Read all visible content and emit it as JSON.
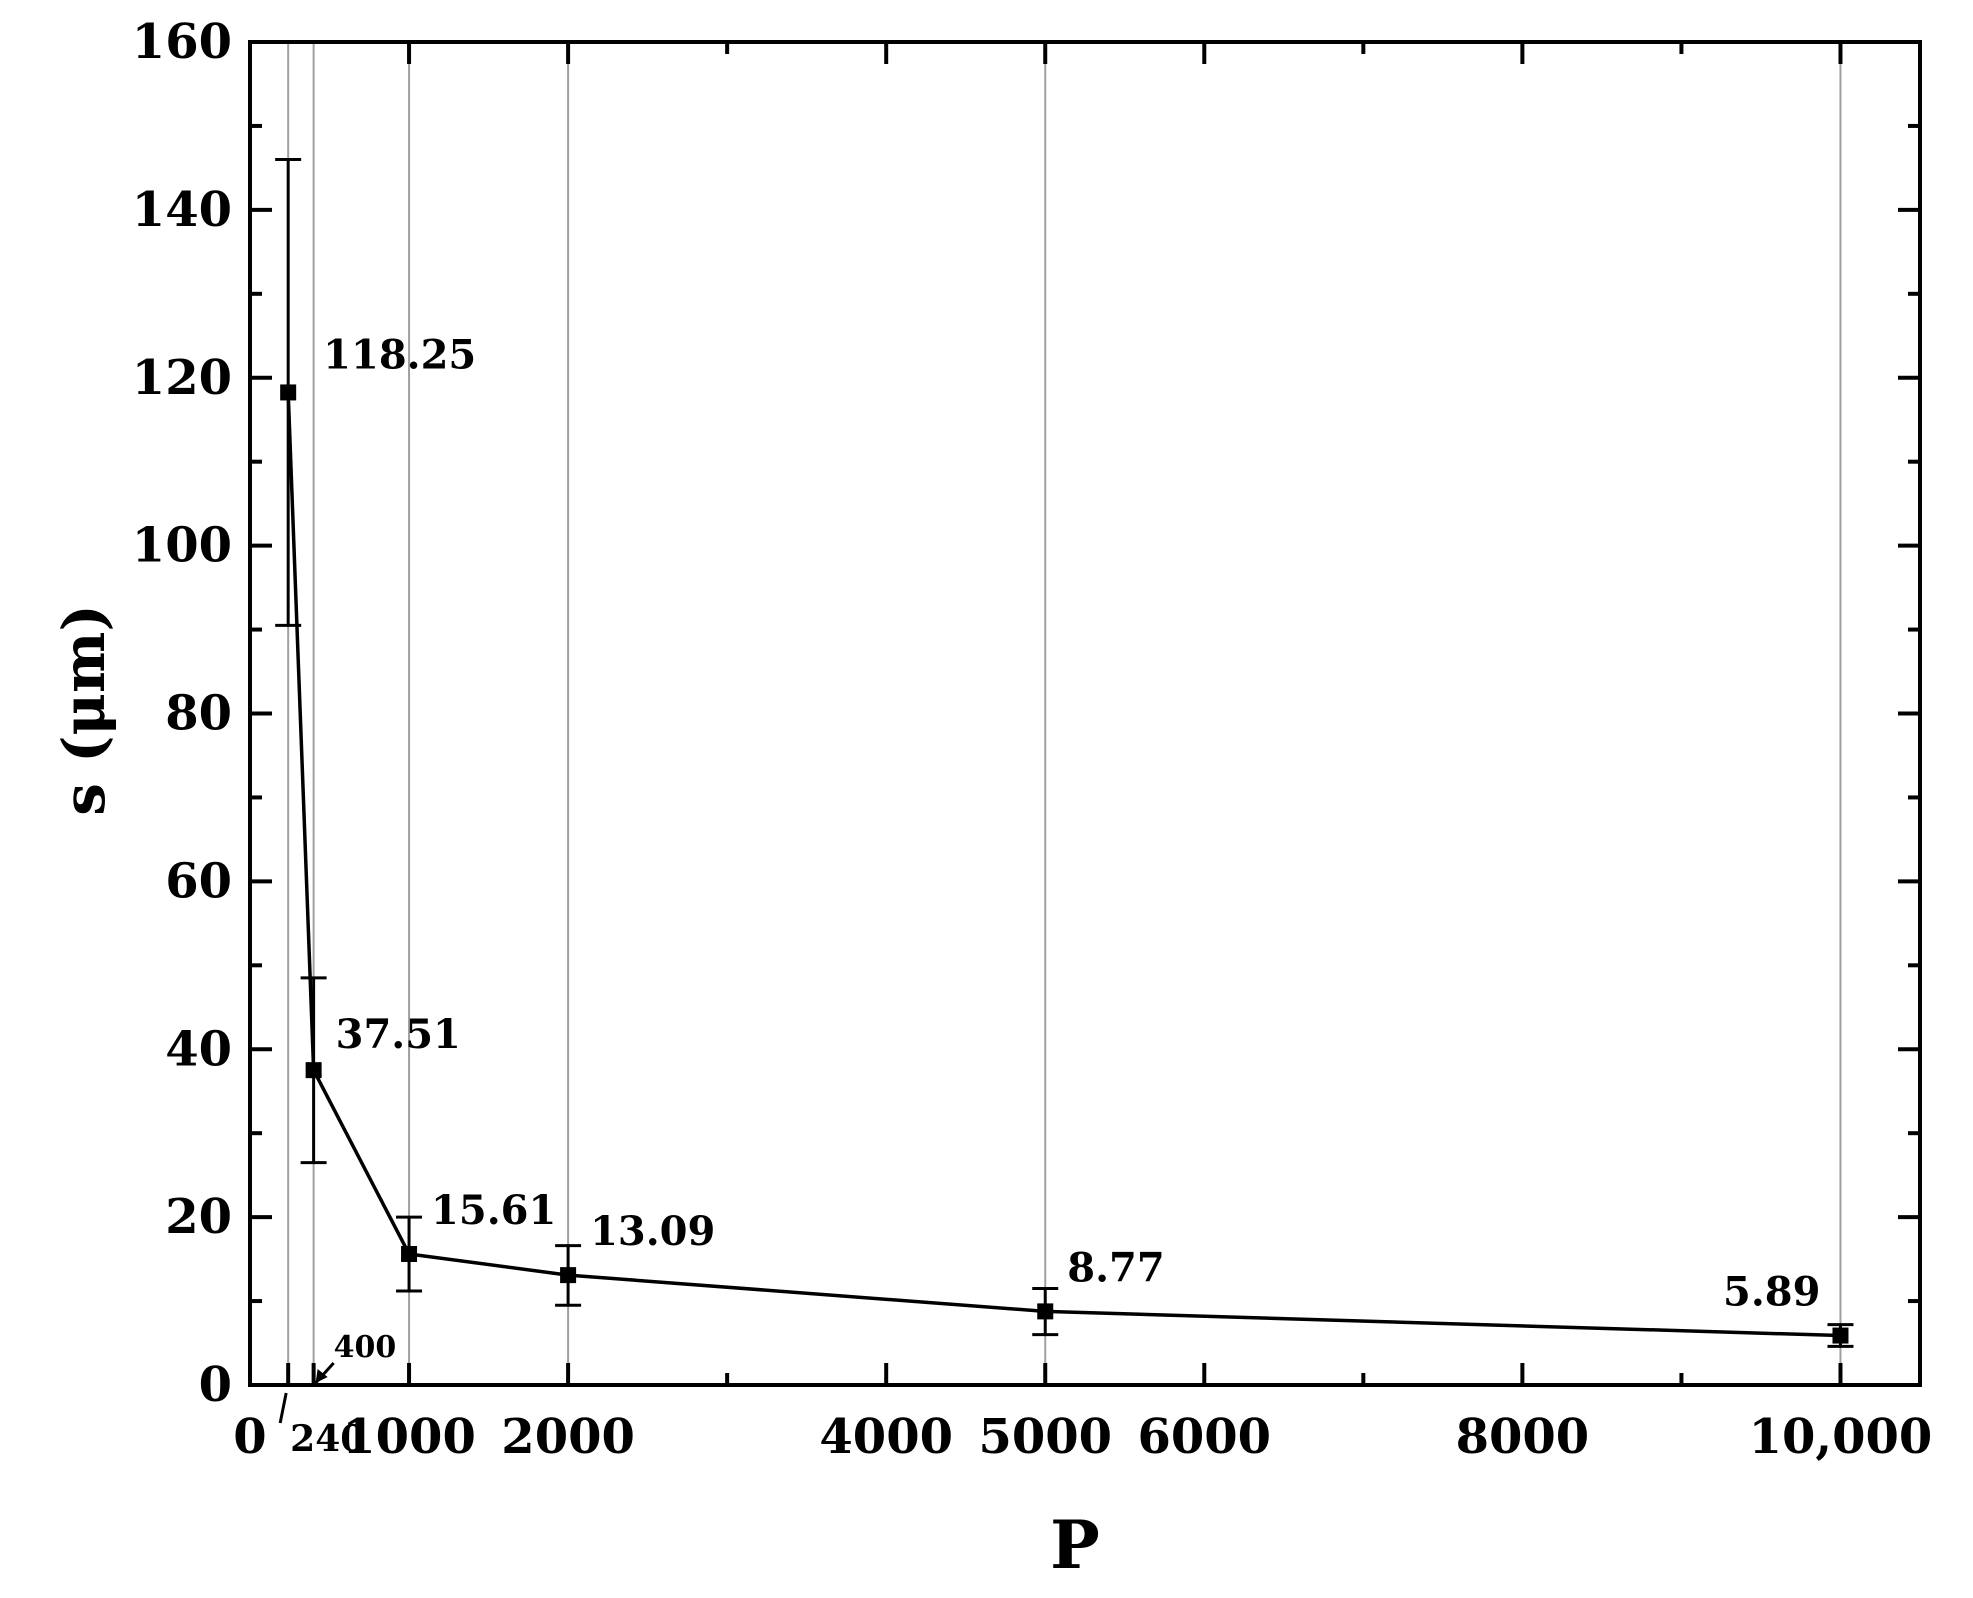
{
  "chart_data": {
    "type": "line",
    "title": "",
    "xlabel": "P",
    "ylabel": "s (μm)",
    "xlim": [
      0,
      10500
    ],
    "ylim": [
      0,
      160
    ],
    "grid": "vertical lines at data points",
    "legend": "none",
    "x_ticks": [
      {
        "value": 0,
        "label": "0"
      },
      {
        "value": 1000,
        "label": "1000"
      },
      {
        "value": 2000,
        "label": "2000"
      },
      {
        "value": 4000,
        "label": "4000"
      },
      {
        "value": 5000,
        "label": "5000"
      },
      {
        "value": 6000,
        "label": "6000"
      },
      {
        "value": 8000,
        "label": "8000"
      },
      {
        "value": 10000,
        "label": "10,000"
      }
    ],
    "x_minor_ticks": [
      3000,
      7000,
      9000
    ],
    "y_ticks": [
      {
        "value": 0,
        "label": "0"
      },
      {
        "value": 20,
        "label": "20"
      },
      {
        "value": 40,
        "label": "40"
      },
      {
        "value": 60,
        "label": "60"
      },
      {
        "value": 80,
        "label": "80"
      },
      {
        "value": 100,
        "label": "100"
      },
      {
        "value": 120,
        "label": "120"
      },
      {
        "value": 140,
        "label": "140"
      },
      {
        "value": 160,
        "label": "160"
      }
    ],
    "y_minor_ticks": [
      10,
      30,
      50,
      70,
      90,
      110,
      130,
      150
    ],
    "series": [
      {
        "points": [
          {
            "x": 240,
            "y": 118.25,
            "err_low": 90.5,
            "err_high": 146,
            "label": "118.25"
          },
          {
            "x": 400,
            "y": 37.51,
            "err_low": 26.5,
            "err_high": 48.5,
            "label": "37.51"
          },
          {
            "x": 1000,
            "y": 15.61,
            "err_low": 11.2,
            "err_high": 20.0,
            "label": "15.61"
          },
          {
            "x": 2000,
            "y": 13.09,
            "err_low": 9.5,
            "err_high": 16.6,
            "label": "13.09"
          },
          {
            "x": 5000,
            "y": 8.77,
            "err_low": 6.0,
            "err_high": 11.5,
            "label": "8.77"
          },
          {
            "x": 10000,
            "y": 5.89,
            "err_low": 4.6,
            "err_high": 7.2,
            "label": "5.89"
          }
        ]
      }
    ],
    "point_annotations": [
      {
        "x": 240,
        "label": "240"
      },
      {
        "x": 400,
        "label": "400"
      }
    ],
    "colors": {
      "line": "#000000",
      "grid": "#a0a0a0"
    }
  }
}
